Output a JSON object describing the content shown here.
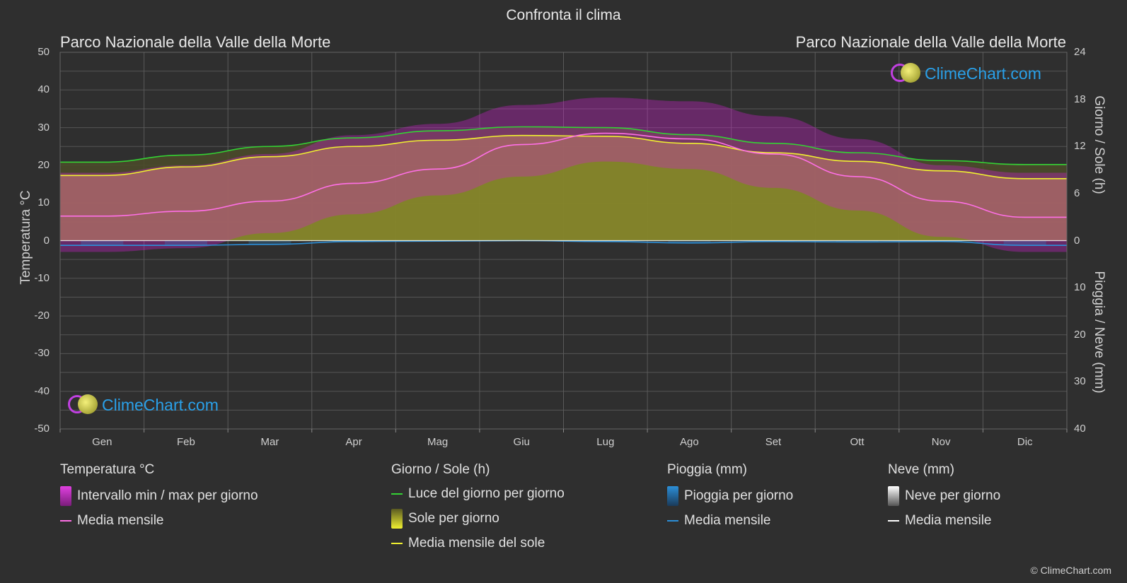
{
  "title": "Confronta il clima",
  "location_left": "Parco Nazionale della Valle della Morte",
  "location_right": "Parco Nazionale della Valle della Morte",
  "brand": "ClimeChart.com",
  "copyright": "© ClimeChart.com",
  "colors": {
    "background": "#2f2f2f",
    "temp_range": "#d21fd2",
    "temp_mean": "#ff6fe6",
    "daylight": "#34d234",
    "sun_fill": "#b3b32a",
    "sun_mean": "#f0f030",
    "rain": "#2c8fd8",
    "rain_mean": "#2c8fd8",
    "snow": "#cccccc",
    "snow_mean": "#ffffff",
    "brand": "#2aa0e8"
  },
  "chart_data": {
    "type": "area",
    "categories": [
      "Gen",
      "Feb",
      "Mar",
      "Apr",
      "Mag",
      "Giu",
      "Lug",
      "Ago",
      "Set",
      "Ott",
      "Nov",
      "Dic"
    ],
    "y_left": {
      "label": "Temperatura °C",
      "range": [
        -50,
        50
      ],
      "ticks": [
        "50",
        "40",
        "30",
        "20",
        "10",
        "0",
        "-10",
        "-20",
        "-30",
        "-40",
        "-50"
      ]
    },
    "y_right_top": {
      "label": "Giorno / Sole (h)",
      "range": [
        0,
        24
      ],
      "ticks": [
        "24",
        "18",
        "12",
        "6",
        "0"
      ]
    },
    "y_right_bottom": {
      "label": "Pioggia / Neve (mm)",
      "range": [
        0,
        40
      ],
      "ticks": [
        "10",
        "20",
        "30",
        "40"
      ]
    },
    "grid": true,
    "series": [
      {
        "name": "Media mensile",
        "group": "Temperatura °C",
        "unit": "°C",
        "values": [
          6.5,
          7.8,
          10.5,
          15.2,
          19.0,
          25.5,
          28.5,
          27.0,
          23.0,
          17.0,
          10.5,
          6.2
        ]
      },
      {
        "name": "Intervallo min / max per giorno",
        "group": "Temperatura °C",
        "unit": "°C",
        "min": [
          -3,
          -2,
          2,
          7,
          12,
          17,
          21,
          19,
          14,
          8,
          1,
          -3
        ],
        "max": [
          18,
          20,
          23,
          28,
          31,
          36,
          38,
          37,
          33,
          27,
          20,
          18
        ]
      },
      {
        "name": "Luce del giorno per giorno",
        "group": "Giorno / Sole (h)",
        "unit": "h",
        "values": [
          10.0,
          10.9,
          12.0,
          13.1,
          14.0,
          14.5,
          14.4,
          13.5,
          12.4,
          11.2,
          10.2,
          9.7
        ]
      },
      {
        "name": "Media mensile del sole",
        "group": "Giorno / Sole (h)",
        "unit": "h",
        "values": [
          8.3,
          9.4,
          10.7,
          12.0,
          12.8,
          13.4,
          13.3,
          12.4,
          11.2,
          10.1,
          8.9,
          7.9
        ]
      },
      {
        "name": "Media mensile",
        "group": "Pioggia (mm)",
        "unit": "mm",
        "values": [
          1.0,
          1.0,
          0.8,
          0.2,
          0.1,
          0.0,
          0.2,
          0.5,
          0.2,
          0.3,
          0.2,
          1.0
        ]
      },
      {
        "name": "Media mensile",
        "group": "Neve (mm)",
        "unit": "mm",
        "values": [
          0,
          0,
          0,
          0,
          0,
          0,
          0,
          0,
          0,
          0,
          0,
          0
        ]
      }
    ]
  },
  "legend": {
    "temperature": {
      "heading": "Temperatura °C",
      "items": [
        "Intervallo min / max per giorno",
        "Media mensile"
      ]
    },
    "sun": {
      "heading": "Giorno / Sole (h)",
      "items": [
        "Luce del giorno per giorno",
        "Sole per giorno",
        "Media mensile del sole"
      ]
    },
    "rain": {
      "heading": "Pioggia (mm)",
      "items": [
        "Pioggia per giorno",
        "Media mensile"
      ]
    },
    "snow": {
      "heading": "Neve (mm)",
      "items": [
        "Neve per giorno",
        "Media mensile"
      ]
    }
  }
}
